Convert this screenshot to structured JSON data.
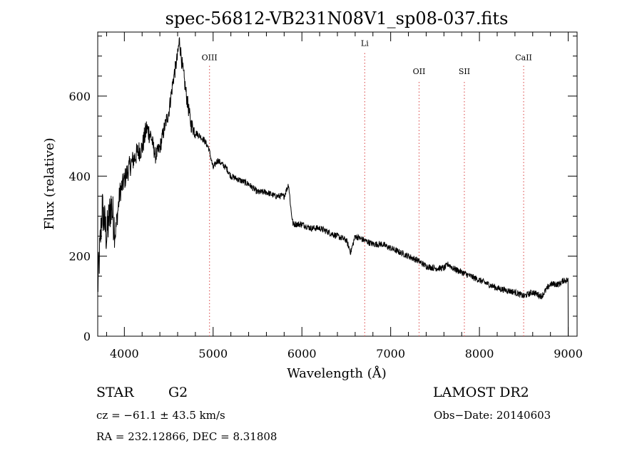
{
  "chart_data": {
    "type": "line",
    "title": "spec-56812-VB231N08V1_sp08-037.fits",
    "xlabel": "Wavelength (Å)",
    "ylabel": "Flux (relative)",
    "xlim": [
      3700,
      9100
    ],
    "ylim": [
      0,
      760
    ],
    "x_ticks": [
      4000,
      5000,
      6000,
      7000,
      8000,
      9000
    ],
    "y_ticks": [
      0,
      200,
      400,
      600
    ],
    "x_tick_labels": [
      "4000",
      "5000",
      "6000",
      "7000",
      "8000",
      "9000"
    ],
    "y_tick_labels": [
      "0",
      "200",
      "400",
      "600"
    ],
    "grid": false,
    "line_color": "#000000",
    "series": [
      {
        "x": [
          3700,
          3750,
          3800,
          3850,
          3900,
          3950,
          4000,
          4050,
          4100,
          4150,
          4200,
          4250,
          4300,
          4350,
          4400,
          4450,
          4500,
          4550,
          4600,
          4620,
          4650,
          4700,
          4750,
          4800,
          4850,
          4900,
          4950,
          5000,
          5050,
          5100,
          5150,
          5200,
          5300,
          5400,
          5500,
          5600,
          5700,
          5800,
          5850,
          5880,
          5900,
          6000,
          6100,
          6200,
          6300,
          6400,
          6500,
          6550,
          6600,
          6700,
          6800,
          6900,
          7000,
          7100,
          7200,
          7300,
          7400,
          7500,
          7600,
          7650,
          7700,
          7800,
          7900,
          8000,
          8100,
          8200,
          8300,
          8400,
          8500,
          8600,
          8700,
          8800,
          8900,
          8950,
          9000
        ],
        "y": [
          120,
          320,
          250,
          330,
          260,
          360,
          390,
          420,
          440,
          460,
          470,
          520,
          500,
          450,
          470,
          520,
          560,
          640,
          700,
          740,
          680,
          600,
          530,
          510,
          500,
          490,
          470,
          420,
          440,
          430,
          420,
          400,
          390,
          380,
          360,
          360,
          350,
          350,
          380,
          310,
          280,
          280,
          270,
          270,
          260,
          250,
          240,
          210,
          250,
          240,
          230,
          230,
          220,
          210,
          200,
          190,
          175,
          170,
          170,
          180,
          170,
          160,
          150,
          140,
          130,
          120,
          115,
          110,
          100,
          110,
          100,
          130,
          130,
          140,
          140
        ]
      }
    ],
    "lines": [
      {
        "label": "OIII",
        "x": 4959,
        "label_y": 690
      },
      {
        "label": "Li",
        "x": 6708,
        "label_y": 725
      },
      {
        "label": "OII",
        "x": 7320,
        "label_y": 655
      },
      {
        "label": "SII",
        "x": 7830,
        "label_y": 655
      },
      {
        "label": "CaII",
        "x": 8498,
        "label_y": 690
      }
    ],
    "line_marker_color": "#e06060"
  },
  "info": {
    "object_class": "STAR",
    "subclass": "G2",
    "survey": "LAMOST DR2",
    "redshift": "cz = −61.1 ± 43.5 km/s",
    "obs_date": "Obs−Date: 20140603",
    "coords": "RA = 232.12866, DEC =   8.31808"
  }
}
